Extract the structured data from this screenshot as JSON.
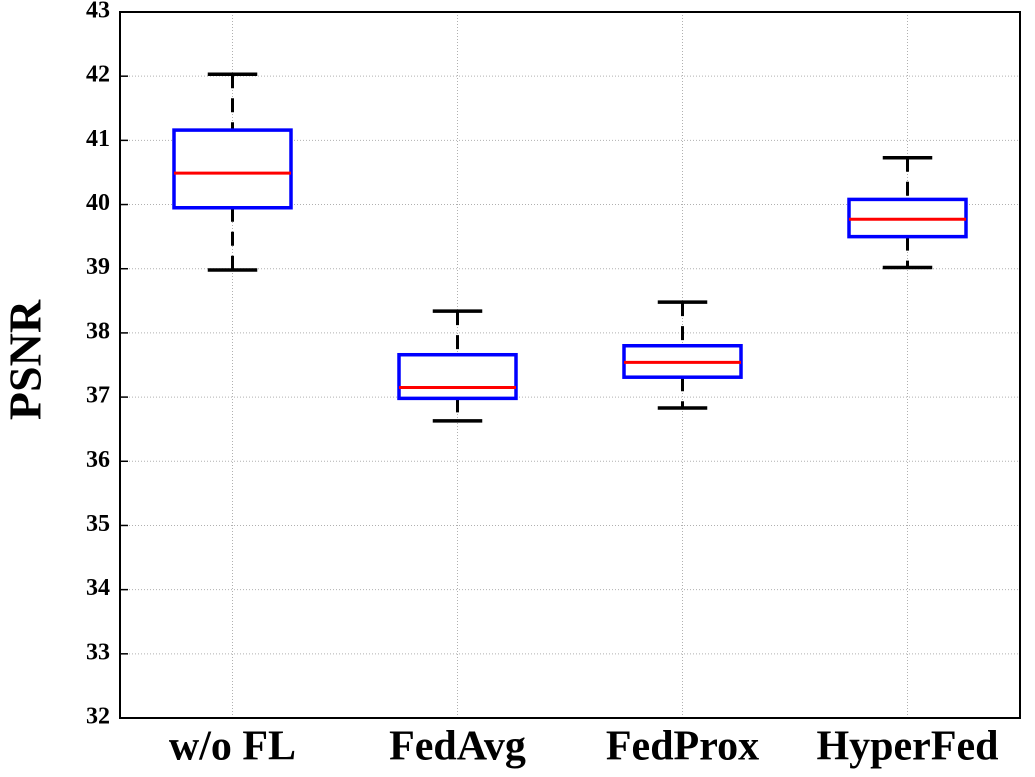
{
  "chart_data": {
    "type": "box",
    "ylabel": "PSNR",
    "categories": [
      "w/o FL",
      "FedAvg",
      "FedProx",
      "HyperFed"
    ],
    "max": [
      42.03,
      38.34,
      38.48,
      40.73
    ],
    "q3": [
      41.16,
      37.66,
      37.8,
      40.08
    ],
    "median": [
      40.49,
      37.15,
      37.54,
      39.77
    ],
    "q1": [
      39.95,
      36.98,
      37.31,
      39.5
    ],
    "min": [
      38.98,
      36.63,
      36.83,
      39.02
    ],
    "box_color": "#0000ff",
    "median_color": "#ff0000",
    "whisker_color": "#000000",
    "ylim": [
      32,
      43
    ],
    "yticks": [
      32,
      33,
      34,
      35,
      36,
      37,
      38,
      39,
      40,
      41,
      42,
      43
    ],
    "grid": true
  }
}
